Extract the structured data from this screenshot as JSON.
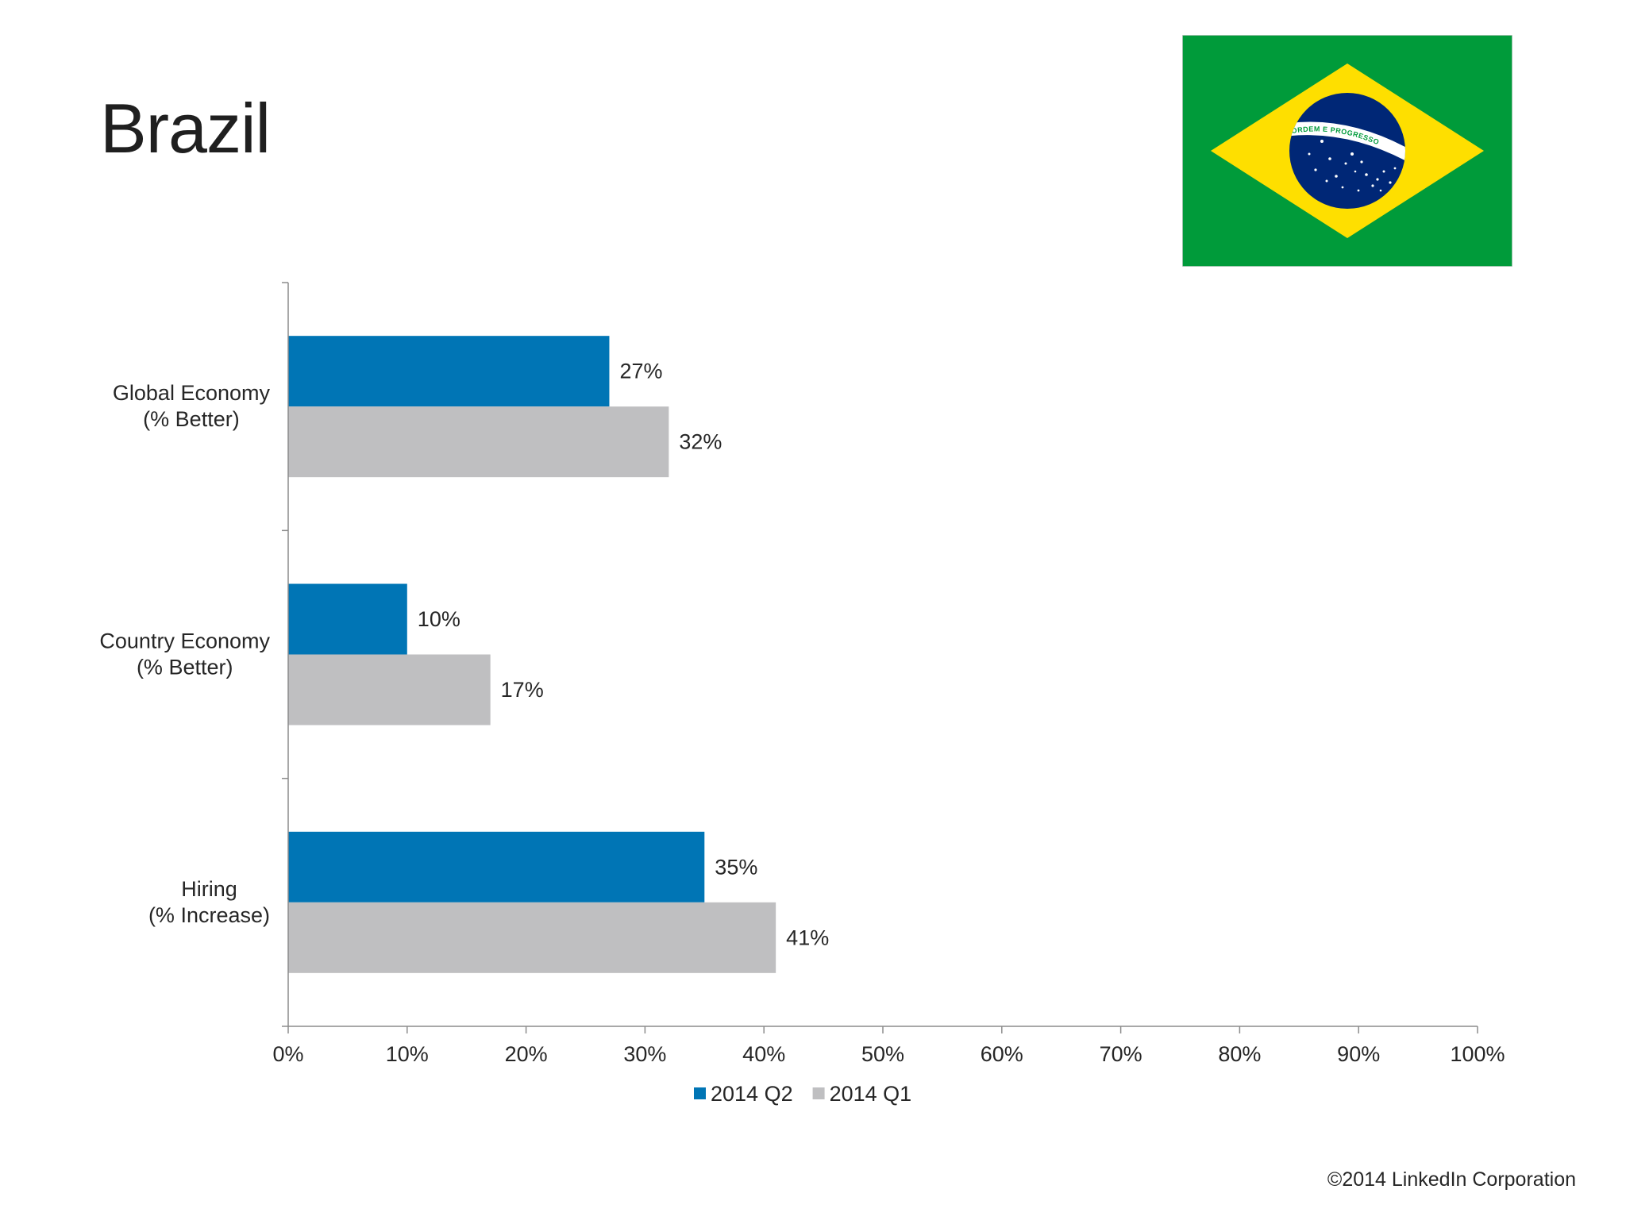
{
  "page": {
    "title": "Brazil",
    "copyright": "©2014 LinkedIn Corporation"
  },
  "flag": {
    "icon": "brazil-flag-icon",
    "motto": "ORDEM E PROGRESSO",
    "colors": {
      "green": "#009b3a",
      "yellow": "#fedf00",
      "blue": "#002776",
      "white": "#ffffff"
    }
  },
  "chart_data": {
    "type": "bar",
    "orientation": "horizontal",
    "categories": [
      [
        "Global Economy",
        "(% Better)"
      ],
      [
        "Country Economy",
        "(% Better)"
      ],
      [
        "Hiring",
        "(% Increase)"
      ]
    ],
    "series": [
      {
        "name": "2014 Q2",
        "color": "#0075b5",
        "values": [
          27,
          10,
          35
        ],
        "labels": [
          "27%",
          "10%",
          "35%"
        ]
      },
      {
        "name": "2014 Q1",
        "color": "#bfbfc1",
        "values": [
          32,
          17,
          41
        ],
        "labels": [
          "32%",
          "17%",
          "41%"
        ]
      }
    ],
    "xlim": [
      0,
      100
    ],
    "xticks": [
      "0%",
      "10%",
      "20%",
      "30%",
      "40%",
      "50%",
      "60%",
      "70%",
      "80%",
      "90%",
      "100%"
    ],
    "grid": false,
    "legend": "bottom"
  }
}
